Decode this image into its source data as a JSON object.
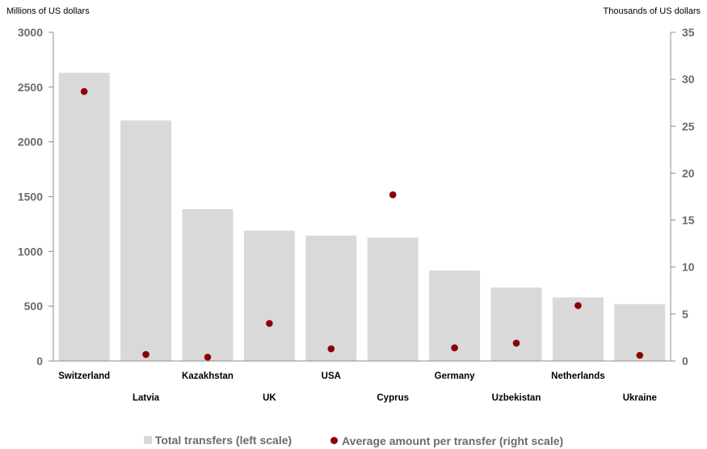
{
  "chart_data": {
    "type": "bar",
    "categories": [
      "Switzerland",
      "Latvia",
      "Kazakhstan",
      "UK",
      "USA",
      "Cyprus",
      "Germany",
      "Uzbekistan",
      "Netherlands",
      "Ukraine"
    ],
    "y_left_label": "Millions of US dollars",
    "y_right_label": "Thousands of US dollars",
    "y_left_lim": [
      0,
      3000
    ],
    "y_left_ticks": [
      0,
      500,
      1000,
      1500,
      2000,
      2500,
      3000
    ],
    "y_right_lim": [
      0,
      35
    ],
    "y_right_ticks": [
      0,
      5,
      10,
      15,
      20,
      25,
      30,
      35
    ],
    "series": [
      {
        "name": "Total transfers (left scale)",
        "type": "bar",
        "axis": "left",
        "color": "#d9d9d9",
        "values": [
          2630,
          2195,
          1385,
          1190,
          1145,
          1125,
          825,
          670,
          580,
          520
        ]
      },
      {
        "name": "Average amount per transfer (right scale)",
        "type": "scatter",
        "axis": "right",
        "color": "#8b0000",
        "values": [
          28.7,
          0.7,
          0.4,
          4.0,
          1.3,
          17.7,
          1.4,
          1.9,
          5.9,
          0.6
        ]
      }
    ],
    "grid": false,
    "legend_position": "bottom"
  }
}
